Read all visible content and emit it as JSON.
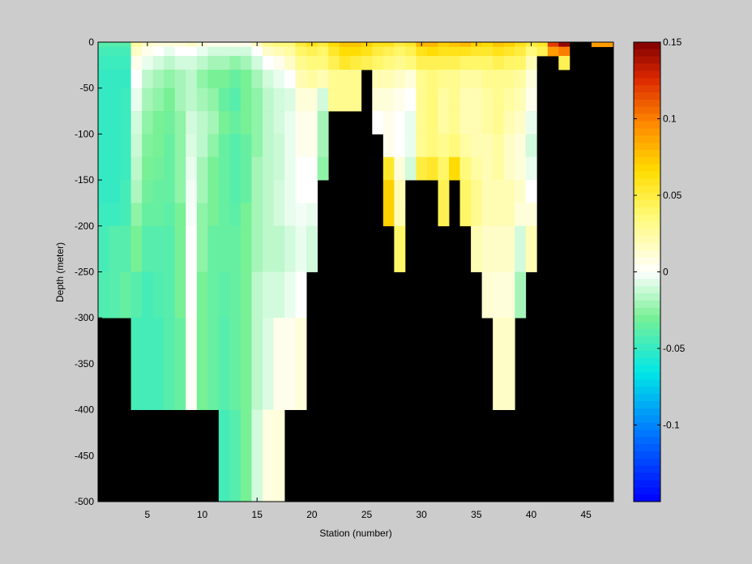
{
  "chart_data": {
    "type": "heatmap",
    "xlabel": "Station (number)",
    "ylabel": "Depth (meter)",
    "xlim": [
      0.5,
      47.5
    ],
    "ylim": [
      -500,
      0
    ],
    "xticks": [
      5,
      10,
      15,
      20,
      25,
      30,
      35,
      40,
      45
    ],
    "yticks": [
      0,
      -50,
      -100,
      -150,
      -200,
      -250,
      -300,
      -350,
      -400,
      -450,
      -500
    ],
    "colorbar": {
      "colormap": "jet-with-white-center",
      "clim": [
        -0.15,
        0.15
      ],
      "ticks": [
        0.15,
        0.1,
        0.05,
        0,
        -0.05,
        -0.1
      ],
      "tick_labels": [
        "0.15",
        "0.1",
        "0.05",
        "0",
        "-0.05",
        "-0.1"
      ]
    },
    "missing_color": "#000000",
    "grid": false,
    "depth_bins": [
      5,
      15,
      30,
      50,
      75,
      100,
      125,
      150,
      175,
      200,
      250,
      300,
      400,
      500
    ],
    "stations": [
      {
        "station": 1,
        "bottom_depth": 300,
        "values": [
          -0.04,
          -0.045,
          -0.048,
          -0.05,
          -0.05,
          -0.05,
          -0.05,
          -0.05,
          -0.05,
          -0.048,
          -0.045,
          -0.042
        ]
      },
      {
        "station": 2,
        "bottom_depth": 300,
        "values": [
          -0.04,
          -0.045,
          -0.048,
          -0.05,
          -0.05,
          -0.05,
          -0.05,
          -0.05,
          -0.05,
          -0.048,
          -0.04,
          -0.04
        ]
      },
      {
        "station": 3,
        "bottom_depth": 300,
        "values": [
          -0.04,
          -0.045,
          -0.048,
          -0.05,
          -0.048,
          -0.048,
          -0.048,
          -0.048,
          -0.045,
          -0.045,
          -0.04,
          -0.035
        ]
      },
      {
        "station": 4,
        "bottom_depth": 400,
        "values": [
          0.025,
          0.015,
          0.005,
          0.0,
          -0.005,
          -0.01,
          -0.012,
          -0.015,
          -0.018,
          -0.025,
          -0.03,
          -0.04,
          -0.045
        ]
      },
      {
        "station": 5,
        "bottom_depth": 400,
        "values": [
          0.015,
          0.005,
          -0.005,
          -0.015,
          -0.02,
          -0.025,
          -0.028,
          -0.03,
          -0.032,
          -0.035,
          -0.04,
          -0.045,
          -0.045
        ]
      },
      {
        "station": 6,
        "bottom_depth": 400,
        "values": [
          0.01,
          0.0,
          -0.01,
          -0.02,
          -0.025,
          -0.03,
          -0.03,
          -0.032,
          -0.035,
          -0.035,
          -0.04,
          -0.042,
          -0.045
        ]
      },
      {
        "station": 7,
        "bottom_depth": 400,
        "values": [
          0.01,
          -0.005,
          -0.015,
          -0.025,
          -0.03,
          -0.032,
          -0.035,
          -0.035,
          -0.035,
          -0.038,
          -0.04,
          -0.04,
          -0.04
        ]
      },
      {
        "station": 8,
        "bottom_depth": 400,
        "values": [
          0.01,
          0.0,
          -0.01,
          -0.02,
          -0.02,
          -0.025,
          -0.025,
          -0.025,
          -0.025,
          -0.03,
          -0.03,
          -0.03,
          -0.035
        ]
      },
      {
        "station": 9,
        "bottom_depth": 400,
        "values": [
          0.015,
          0.0,
          -0.01,
          -0.015,
          -0.015,
          -0.01,
          -0.008,
          -0.005,
          -0.003,
          -0.002,
          0.0,
          0.0,
          0.002
        ]
      },
      {
        "station": 10,
        "bottom_depth": 400,
        "values": [
          0.01,
          -0.005,
          -0.015,
          -0.025,
          -0.02,
          -0.015,
          -0.015,
          -0.02,
          -0.02,
          -0.025,
          -0.025,
          -0.03,
          -0.03
        ]
      },
      {
        "station": 11,
        "bottom_depth": 400,
        "values": [
          0.005,
          -0.01,
          -0.02,
          -0.03,
          -0.025,
          -0.02,
          -0.025,
          -0.03,
          -0.03,
          -0.03,
          -0.035,
          -0.035,
          -0.035
        ]
      },
      {
        "station": 12,
        "bottom_depth": 500,
        "values": [
          0.005,
          -0.01,
          -0.02,
          -0.03,
          -0.035,
          -0.03,
          -0.035,
          -0.035,
          -0.035,
          -0.035,
          -0.035,
          -0.038,
          -0.04,
          -0.045
        ]
      },
      {
        "station": 13,
        "bottom_depth": 500,
        "values": [
          0.005,
          -0.01,
          -0.025,
          -0.035,
          -0.04,
          -0.035,
          -0.04,
          -0.04,
          -0.04,
          -0.038,
          -0.035,
          -0.035,
          -0.035,
          -0.04
        ]
      },
      {
        "station": 14,
        "bottom_depth": 500,
        "values": [
          0.005,
          -0.01,
          -0.02,
          -0.03,
          -0.03,
          -0.03,
          -0.035,
          -0.035,
          -0.035,
          -0.03,
          -0.03,
          -0.03,
          -0.03,
          -0.03
        ]
      },
      {
        "station": 15,
        "bottom_depth": 500,
        "values": [
          0.015,
          0.0,
          -0.01,
          -0.02,
          -0.025,
          -0.025,
          -0.025,
          -0.02,
          -0.02,
          -0.02,
          -0.02,
          -0.015,
          -0.015,
          -0.01
        ]
      },
      {
        "station": 16,
        "bottom_depth": 500,
        "values": [
          0.03,
          0.015,
          0.0,
          -0.01,
          -0.015,
          -0.015,
          -0.015,
          -0.015,
          -0.015,
          -0.015,
          -0.015,
          -0.01,
          -0.008,
          0.008
        ]
      },
      {
        "station": 17,
        "bottom_depth": 500,
        "values": [
          0.035,
          0.02,
          0.005,
          -0.005,
          -0.01,
          -0.01,
          -0.012,
          -0.012,
          -0.01,
          -0.01,
          -0.015,
          -0.01,
          0.005,
          0.01
        ]
      },
      {
        "station": 18,
        "bottom_depth": 400,
        "values": [
          0.035,
          0.025,
          0.015,
          0.0,
          -0.008,
          -0.005,
          -0.005,
          -0.005,
          -0.005,
          -0.005,
          -0.01,
          -0.005,
          0.005
        ]
      },
      {
        "station": 19,
        "bottom_depth": 400,
        "values": [
          0.05,
          0.04,
          0.03,
          0.02,
          0.01,
          0.005,
          0.005,
          0.0,
          0.0,
          -0.003,
          -0.005,
          0.0,
          0.01
        ]
      },
      {
        "station": 20,
        "bottom_depth": 250,
        "values": [
          0.06,
          0.045,
          0.035,
          0.025,
          0.01,
          0.005,
          0.005,
          0.0,
          0.0,
          -0.005,
          -0.01
        ]
      },
      {
        "station": 21,
        "bottom_depth": 150,
        "values": [
          0.05,
          0.04,
          0.035,
          0.02,
          -0.01,
          -0.02,
          -0.02,
          -0.025
        ]
      },
      {
        "station": 22,
        "bottom_depth": 75,
        "values": [
          0.065,
          0.055,
          0.045,
          0.03,
          0.03
        ]
      },
      {
        "station": 23,
        "bottom_depth": 75,
        "values": [
          0.075,
          0.065,
          0.055,
          0.03,
          0.03
        ]
      },
      {
        "station": 24,
        "bottom_depth": 75,
        "values": [
          0.075,
          0.065,
          0.05,
          0.03,
          0.03
        ]
      },
      {
        "station": 25,
        "bottom_depth": 50,
        "values": [
          0.07,
          0.06,
          0.045
        ]
      },
      {
        "station": 26,
        "bottom_depth": 100,
        "values": [
          0.06,
          0.05,
          0.04,
          0.02,
          0.01,
          0.0
        ]
      },
      {
        "station": 27,
        "bottom_depth": 200,
        "values": [
          0.06,
          0.045,
          0.035,
          0.02,
          0.01,
          0.005,
          0.005,
          0.055,
          0.07,
          0.07
        ]
      },
      {
        "station": 28,
        "bottom_depth": 250,
        "values": [
          0.05,
          0.04,
          0.03,
          0.015,
          0.005,
          0.0,
          0.0,
          0.01,
          0.02,
          0.02,
          0.04
        ]
      },
      {
        "station": 29,
        "bottom_depth": 150,
        "values": [
          0.055,
          0.045,
          0.035,
          0.01,
          0.0,
          -0.005,
          -0.005,
          -0.01
        ]
      },
      {
        "station": 30,
        "bottom_depth": 150,
        "values": [
          0.08,
          0.06,
          0.045,
          0.03,
          0.03,
          0.03,
          0.03,
          0.05
        ]
      },
      {
        "station": 31,
        "bottom_depth": 150,
        "values": [
          0.08,
          0.065,
          0.045,
          0.035,
          0.035,
          0.035,
          0.035,
          0.055
        ]
      },
      {
        "station": 32,
        "bottom_depth": 200,
        "values": [
          0.07,
          0.06,
          0.045,
          0.03,
          0.025,
          0.025,
          0.03,
          0.04,
          0.045,
          0.045
        ]
      },
      {
        "station": 33,
        "bottom_depth": 150,
        "values": [
          0.075,
          0.06,
          0.045,
          0.03,
          0.03,
          0.03,
          0.035,
          0.065
        ]
      },
      {
        "station": 34,
        "bottom_depth": 200,
        "values": [
          0.08,
          0.06,
          0.04,
          0.025,
          0.02,
          0.02,
          0.025,
          0.035,
          0.04,
          0.04
        ]
      },
      {
        "station": 35,
        "bottom_depth": 250,
        "values": [
          0.07,
          0.055,
          0.04,
          0.025,
          0.02,
          0.02,
          0.02,
          0.025,
          0.03,
          0.03,
          0.02
        ]
      },
      {
        "station": 36,
        "bottom_depth": 300,
        "values": [
          0.065,
          0.055,
          0.04,
          0.03,
          0.025,
          0.025,
          0.02,
          0.02,
          0.02,
          0.02,
          0.015,
          0.012
        ]
      },
      {
        "station": 37,
        "bottom_depth": 400,
        "values": [
          0.075,
          0.06,
          0.045,
          0.03,
          0.03,
          0.03,
          0.025,
          0.025,
          0.02,
          0.02,
          0.015,
          0.01,
          0.015
        ]
      },
      {
        "station": 38,
        "bottom_depth": 400,
        "values": [
          0.07,
          0.055,
          0.04,
          0.03,
          0.025,
          0.02,
          0.015,
          0.015,
          0.02,
          0.02,
          0.015,
          0.01,
          0.015
        ]
      },
      {
        "station": 39,
        "bottom_depth": 300,
        "values": [
          0.06,
          0.05,
          0.04,
          0.025,
          0.02,
          0.015,
          0.01,
          0.01,
          0.015,
          0.01,
          -0.01,
          -0.02
        ]
      },
      {
        "station": 40,
        "bottom_depth": 250,
        "values": [
          0.05,
          0.035,
          0.02,
          0.01,
          0.005,
          -0.005,
          -0.01,
          -0.005,
          0.0,
          0.01,
          0.02
        ]
      },
      {
        "station": 41,
        "bottom_depth": 30,
        "values": [
          0.055,
          0.045
        ]
      },
      {
        "station": 42,
        "bottom_depth": 30,
        "values": [
          0.12,
          0.09
        ]
      },
      {
        "station": 43,
        "bottom_depth": 50,
        "values": [
          0.145,
          0.1,
          0.045
        ]
      },
      {
        "station": 46,
        "bottom_depth": 15,
        "values": [
          0.09
        ]
      },
      {
        "station": 47,
        "bottom_depth": 15,
        "values": [
          0.09
        ]
      }
    ]
  }
}
